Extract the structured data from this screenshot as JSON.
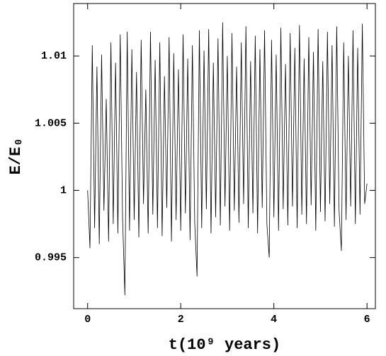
{
  "chart_data": {
    "type": "line",
    "ylabel": "E/E₀",
    "xlabel": "t(10⁹ years)",
    "xlim": [
      -0.3,
      6.18
    ],
    "ylim": [
      0.9912,
      1.0139
    ],
    "xticks": [
      0,
      2,
      4,
      6
    ],
    "yticks": [
      0.995,
      1,
      1.005,
      1.01
    ],
    "color": "#000000",
    "x": [
      0,
      0.05,
      0.1,
      0.15,
      0.2,
      0.25,
      0.3,
      0.35,
      0.4,
      0.45,
      0.5,
      0.55,
      0.6,
      0.65,
      0.7,
      0.75,
      0.8,
      0.85,
      0.9,
      0.95,
      1.0,
      1.05,
      1.1,
      1.15,
      1.2,
      1.25,
      1.3,
      1.35,
      1.4,
      1.45,
      1.5,
      1.55,
      1.6,
      1.65,
      1.7,
      1.75,
      1.8,
      1.85,
      1.9,
      1.95,
      2.0,
      2.05,
      2.1,
      2.15,
      2.2,
      2.25,
      2.3,
      2.35,
      2.4,
      2.45,
      2.5,
      2.55,
      2.6,
      2.65,
      2.7,
      2.75,
      2.8,
      2.85,
      2.9,
      2.95,
      3.0,
      3.05,
      3.1,
      3.15,
      3.2,
      3.25,
      3.3,
      3.35,
      3.4,
      3.45,
      3.5,
      3.55,
      3.6,
      3.65,
      3.7,
      3.75,
      3.8,
      3.85,
      3.9,
      3.95,
      4.0,
      4.05,
      4.1,
      4.15,
      4.2,
      4.25,
      4.3,
      4.35,
      4.4,
      4.45,
      4.5,
      4.55,
      4.6,
      4.65,
      4.7,
      4.75,
      4.8,
      4.85,
      4.9,
      4.95,
      5.0,
      5.05,
      5.1,
      5.15,
      5.2,
      5.25,
      5.3,
      5.35,
      5.4,
      5.45,
      5.5,
      5.55,
      5.6,
      5.65,
      5.7,
      5.75,
      5.8,
      5.85,
      5.9,
      5.95,
      6.0
    ],
    "values": [
      1.0,
      0.9957,
      1.0108,
      0.9972,
      1.0092,
      0.996,
      1.0101,
      0.9985,
      1.0068,
      0.9962,
      1.011,
      0.9975,
      1.0095,
      0.9968,
      1.0116,
      0.998,
      0.9922,
      1.0118,
      0.997,
      1.0105,
      0.9978,
      1.0088,
      0.9965,
      1.0112,
      0.999,
      1.0075,
      0.9968,
      1.0118,
      0.9982,
      1.0097,
      0.9972,
      1.011,
      0.9966,
      1.0085,
      0.9987,
      1.0114,
      0.9962,
      1.0102,
      0.9978,
      1.009,
      0.997,
      1.0116,
      0.9983,
      1.0098,
      0.9963,
      1.0108,
      0.9976,
      0.9936,
      1.0119,
      0.9972,
      1.0104,
      0.9986,
      1.012,
      0.9968,
      1.0095,
      0.998,
      1.0113,
      0.9974,
      1.0125,
      0.9988,
      1.01,
      0.997,
      1.0117,
      0.9985,
      1.0092,
      0.9976,
      1.011,
      0.999,
      1.0122,
      0.9972,
      1.0096,
      0.9983,
      1.0115,
      0.9968,
      1.0105,
      0.9987,
      1.0119,
      0.9975,
      0.995,
      1.0112,
      0.998,
      1.0101,
      0.997,
      1.0121,
      0.9986,
      1.0094,
      0.9974,
      1.0117,
      0.9988,
      1.0106,
      0.9972,
      1.0123,
      0.9982,
      1.0098,
      0.9975,
      1.0114,
      0.9989,
      1.0103,
      0.997,
      1.012,
      0.9984,
      1.0096,
      0.9977,
      1.0118,
      0.999,
      1.0108,
      0.9973,
      1.0122,
      0.9985,
      0.9955,
      1.011,
      0.9978,
      1.01,
      0.9988,
      1.0119,
      0.9975,
      1.0106,
      0.9982,
      1.0124,
      0.999,
      1.0005
    ]
  }
}
